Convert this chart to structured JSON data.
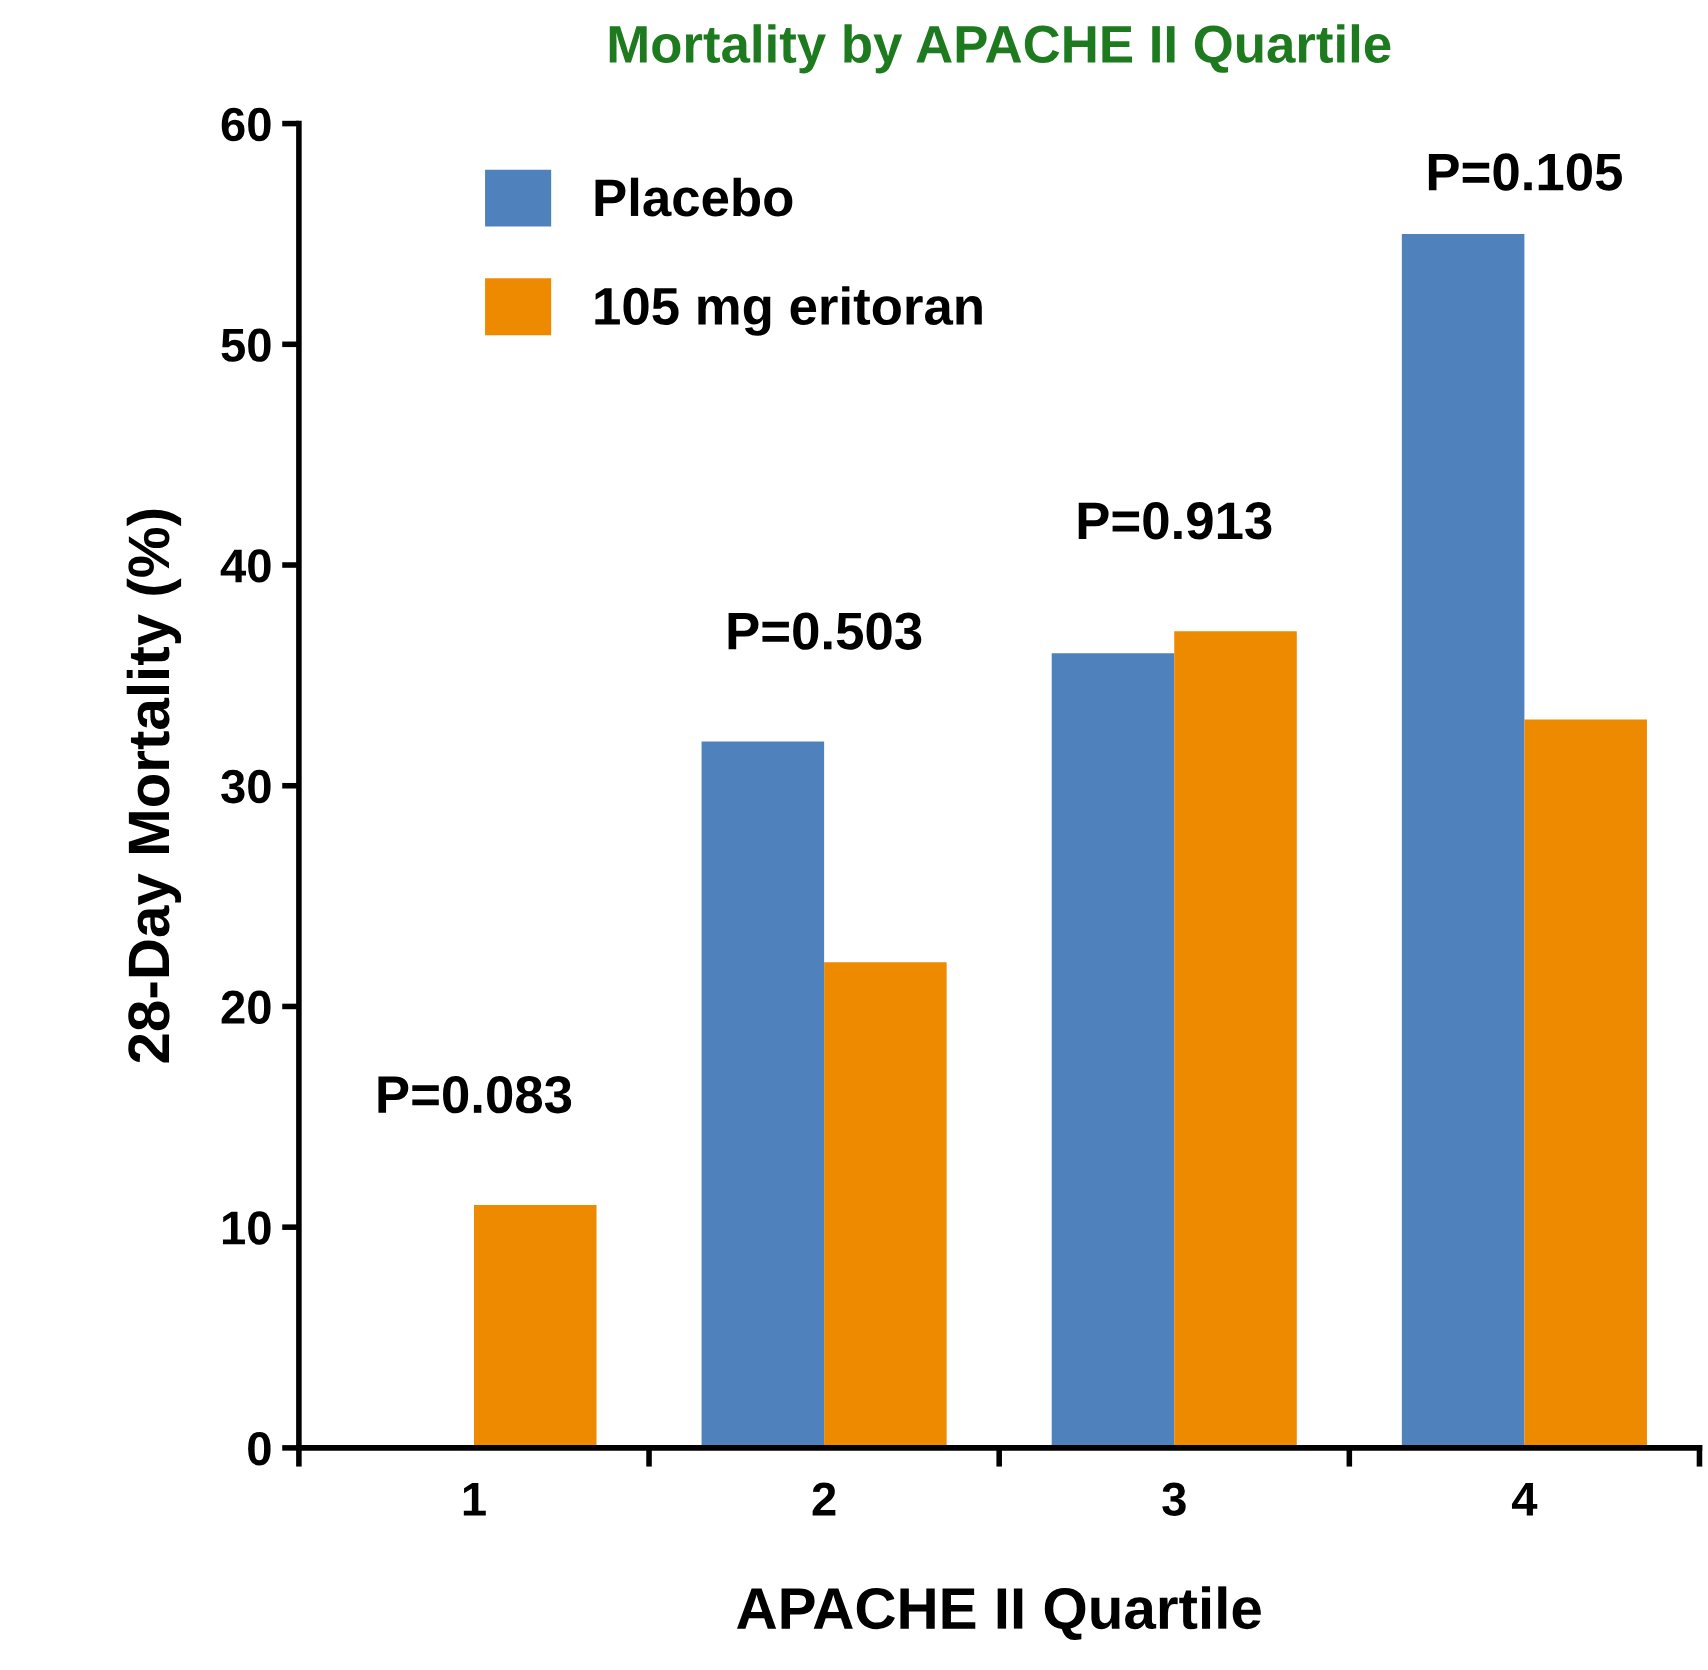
{
  "chart_data": {
    "type": "bar",
    "title": "Mortality by APACHE II Quartile",
    "xlabel": "APACHE II Quartile",
    "ylabel": "28-Day Mortality (%)",
    "categories": [
      "1",
      "2",
      "3",
      "4"
    ],
    "series": [
      {
        "name": "Placebo",
        "color": "#4f81bd",
        "values": [
          0,
          32,
          36,
          55
        ]
      },
      {
        "name": "105 mg eritoran",
        "color": "#ee8a00",
        "values": [
          11,
          22,
          37,
          33
        ]
      }
    ],
    "ylim": [
      0,
      60
    ],
    "yticks": [
      0,
      10,
      20,
      30,
      40,
      50,
      60
    ],
    "grid": false,
    "legend": "top left",
    "annotations": [
      "P=0.083",
      "P=0.503",
      "P=0.913",
      "P=0.105"
    ]
  }
}
